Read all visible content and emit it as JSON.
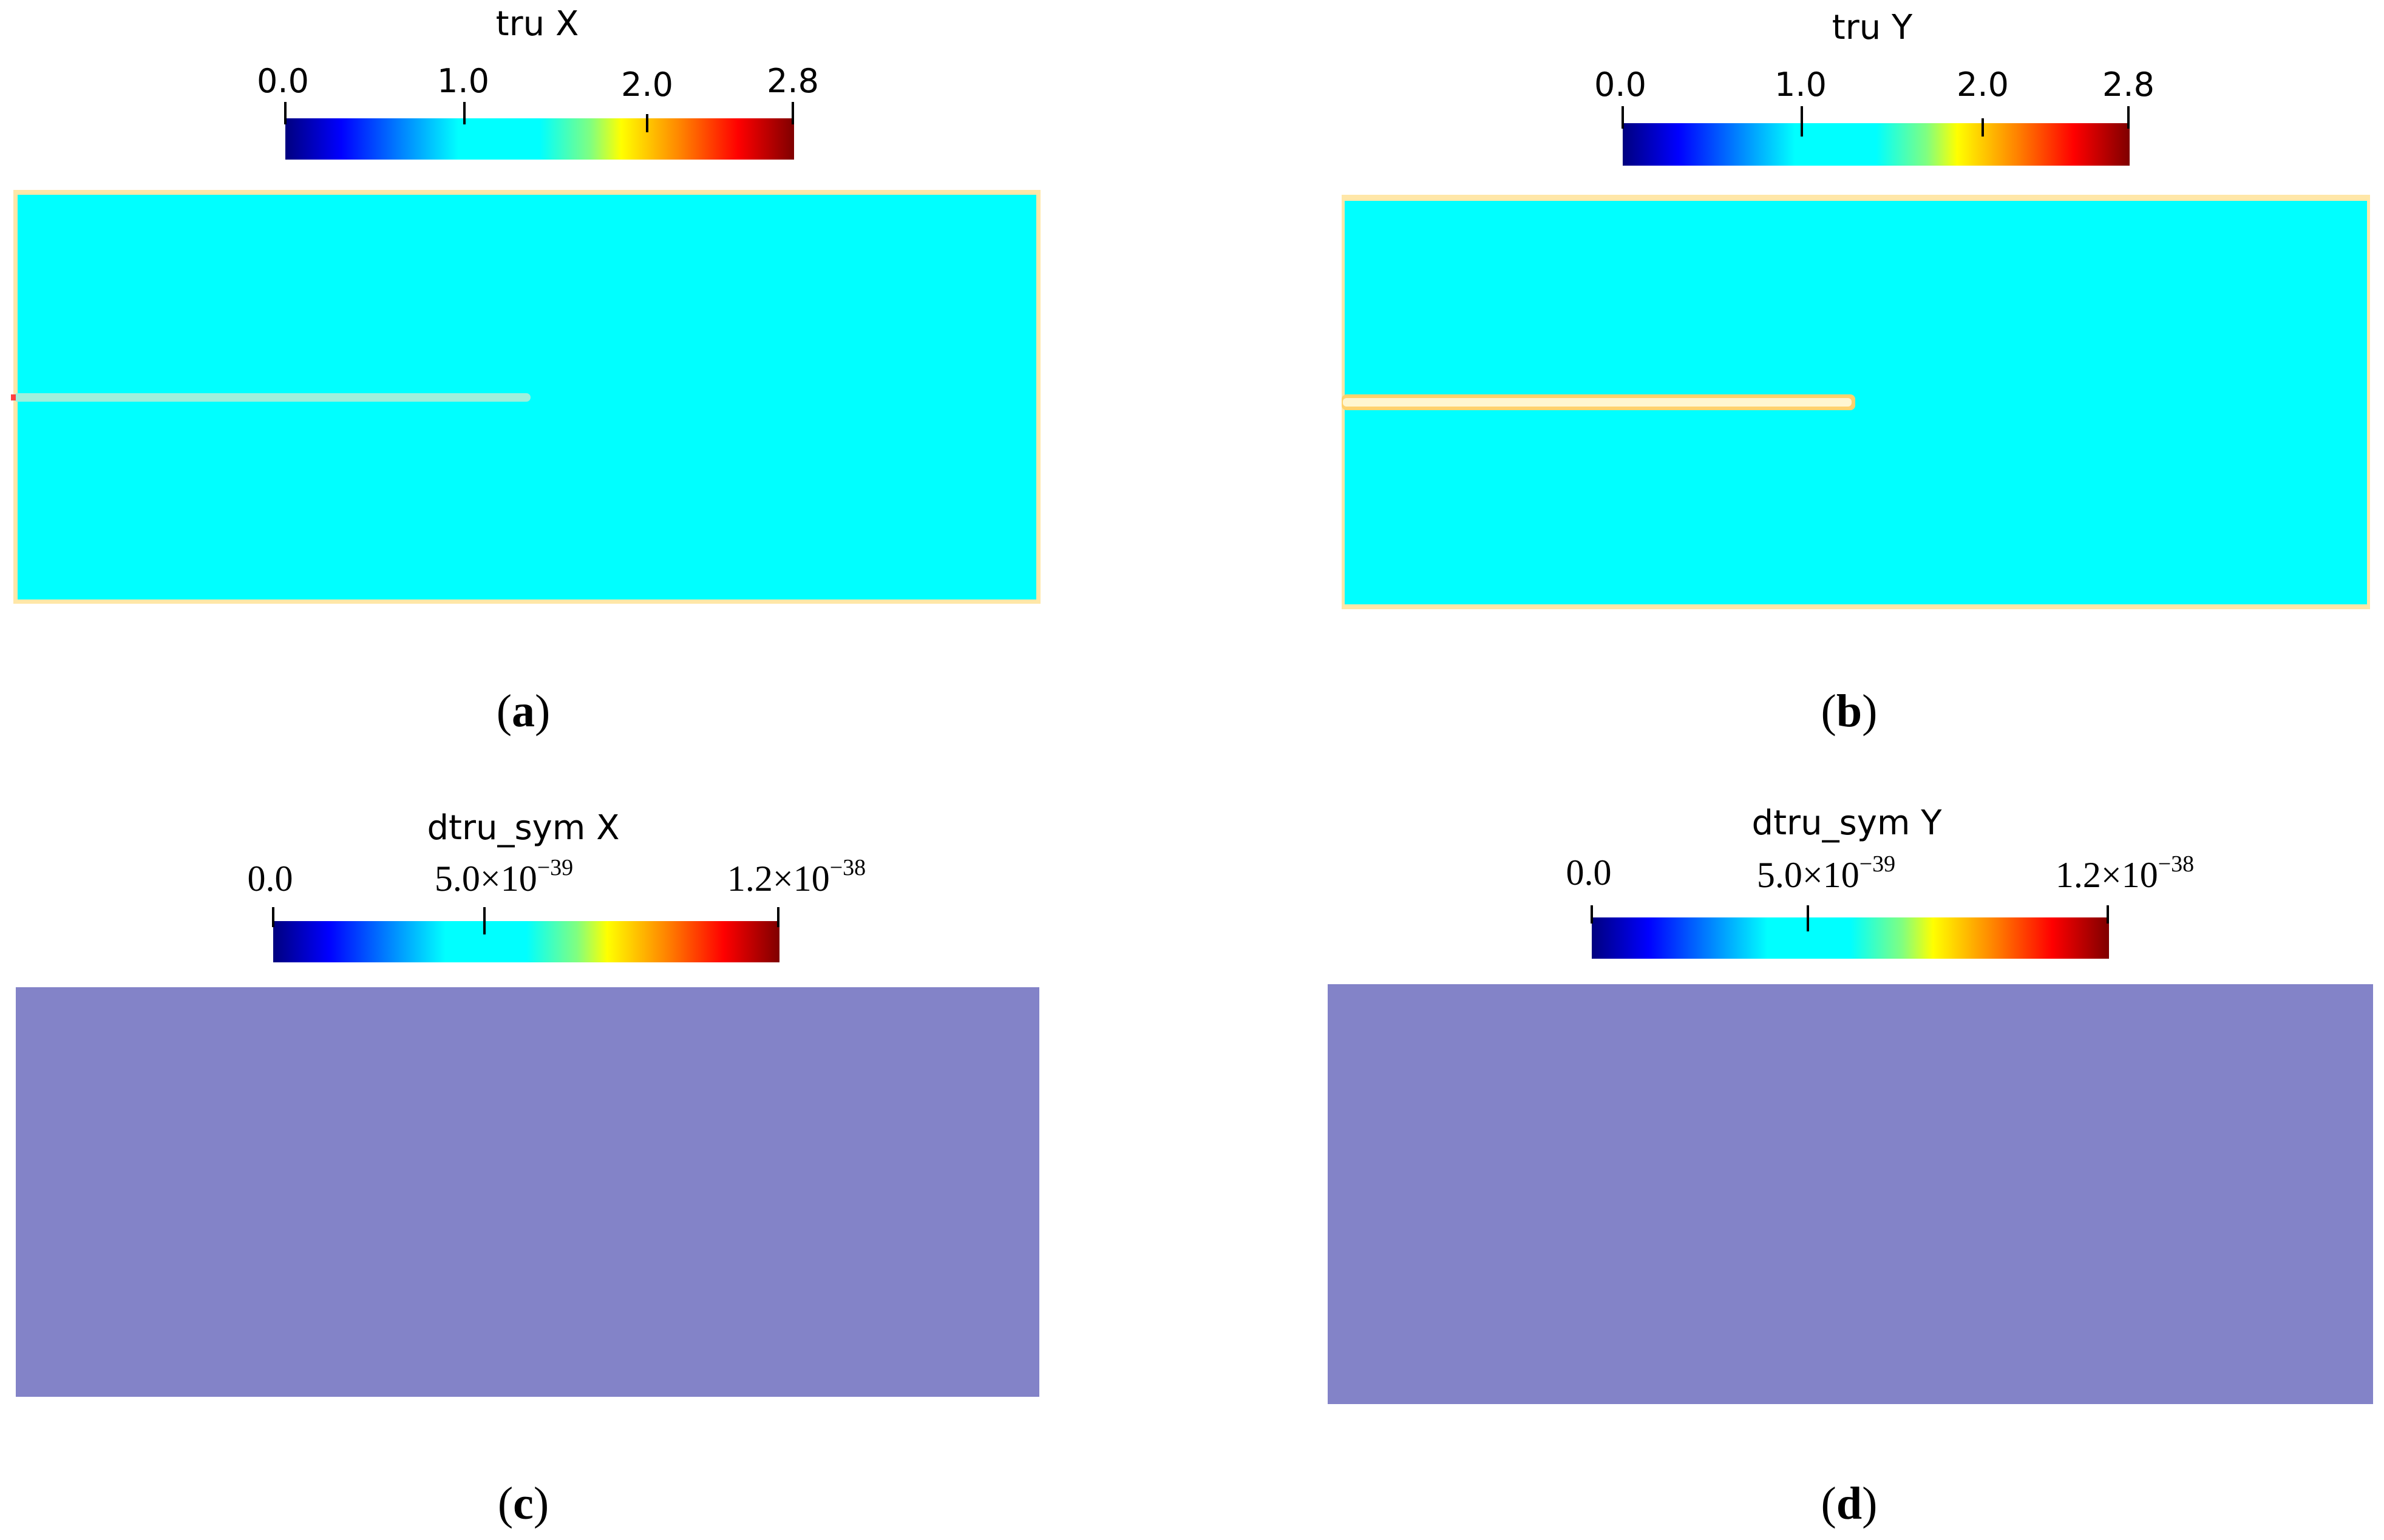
{
  "colors": {
    "colormap": [
      "#00007f",
      "#0000ff",
      "#0080ff",
      "#00ffff",
      "#80ff80",
      "#ffff00",
      "#ff8000",
      "#ff0000",
      "#7f0000"
    ],
    "field_cyan": "#00ffff",
    "field_slate": "#8383c8",
    "boundary_light": "#ffe7a8",
    "crack_light": "#9ef0dc",
    "crack_border": "#ffd26e"
  },
  "panels": [
    {
      "id": "a",
      "caption": "a",
      "field_name": "tru X",
      "ticks": [
        "0.0",
        "1.0",
        "2.0",
        "2.8"
      ],
      "tick_values": [
        0.0,
        1.0,
        2.0,
        2.8
      ],
      "range": [
        0.0,
        2.8
      ],
      "field_value": 1.0
    },
    {
      "id": "b",
      "caption": "b",
      "field_name": "tru Y",
      "ticks": [
        "0.0",
        "1.0",
        "2.0",
        "2.8"
      ],
      "tick_values": [
        0.0,
        1.0,
        2.0,
        2.8
      ],
      "range": [
        0.0,
        2.8
      ],
      "field_value": 1.0
    },
    {
      "id": "c",
      "caption": "c",
      "field_name": "dtru_sym X",
      "ticks": [
        {
          "mant": "0.0"
        },
        {
          "mant": "5.0",
          "times": "×",
          "base": "10",
          "exp": "−39"
        },
        {
          "mant": "1.2",
          "times": "×",
          "base": "10",
          "exp": "−38"
        }
      ],
      "tick_values": [
        0.0,
        5e-39,
        1.2e-38
      ],
      "range": [
        0.0,
        1.2e-38
      ],
      "field_value": 0.0
    },
    {
      "id": "d",
      "caption": "d",
      "field_name": "dtru_sym Y",
      "ticks": [
        {
          "mant": "0.0"
        },
        {
          "mant": "5.0",
          "times": "×",
          "base": "10",
          "exp": "−39"
        },
        {
          "mant": "1.2",
          "times": "×",
          "base": "10",
          "exp": "−38"
        }
      ],
      "tick_values": [
        0.0,
        5e-39,
        1.2e-38
      ],
      "range": [
        0.0,
        1.2e-38
      ],
      "field_value": 0.0
    }
  ]
}
